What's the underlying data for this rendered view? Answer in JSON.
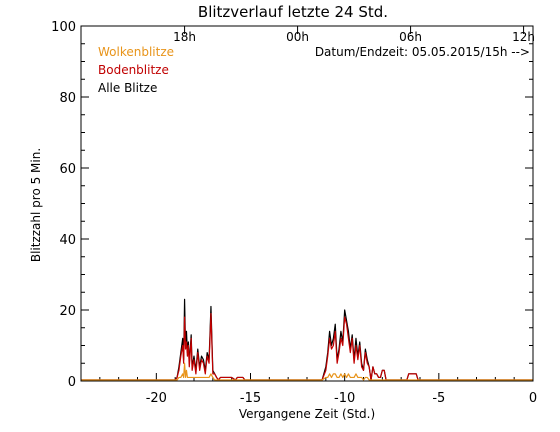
{
  "chart_data": {
    "type": "line",
    "title": "Blitzverlauf letzte 24 Std.",
    "xlabel": "Vergangene Zeit (Std.)",
    "ylabel": "Blitzzahl pro 5 Min.",
    "xlim": [
      -24,
      0
    ],
    "ylim": [
      0,
      100
    ],
    "x_ticks": [
      -20,
      -15,
      -10,
      -5,
      0
    ],
    "y_ticks": [
      0,
      20,
      40,
      60,
      80,
      100
    ],
    "top_ticks": [
      {
        "x": -18.5,
        "label": "18h"
      },
      {
        "x": -12.5,
        "label": "00h"
      },
      {
        "x": -6.5,
        "label": "06h"
      },
      {
        "x": -0.5,
        "label": "12h"
      }
    ],
    "info_text": "Datum/Endzeit: 05.05.2015/15h -->",
    "grid": false,
    "legend_position": "top-left",
    "series": [
      {
        "name": "Alle Blitze",
        "color": "#000000",
        "x": [
          -24,
          -19.0,
          -18.9,
          -18.8,
          -18.7,
          -18.6,
          -18.55,
          -18.5,
          -18.45,
          -18.4,
          -18.35,
          -18.3,
          -18.25,
          -18.2,
          -18.15,
          -18.1,
          -18.0,
          -17.9,
          -17.8,
          -17.7,
          -17.6,
          -17.5,
          -17.4,
          -17.3,
          -17.2,
          -17.1,
          -17.0,
          -16.9,
          -16.8,
          -16.7,
          -16.6,
          -16.5,
          -16.0,
          -15.8,
          -15.7,
          -15.4,
          -15.3,
          -11.2,
          -11.0,
          -10.9,
          -10.8,
          -10.7,
          -10.6,
          -10.5,
          -10.4,
          -10.3,
          -10.2,
          -10.1,
          -10.0,
          -9.9,
          -9.8,
          -9.7,
          -9.6,
          -9.5,
          -9.4,
          -9.3,
          -9.2,
          -9.1,
          -9.0,
          -8.9,
          -8.8,
          -8.7,
          -8.6,
          -8.5,
          -8.4,
          -8.3,
          -8.2,
          -8.1,
          -8.0,
          -7.9,
          -7.8,
          -7.7,
          -7.6,
          -7.5,
          -7.4,
          -7.3,
          -7.2,
          -7.1,
          -7.0,
          -6.9,
          -6.8,
          -6.7,
          -6.6,
          -6.5,
          -6.4,
          -6.3,
          -6.2,
          -6.1,
          -6.0,
          -5.5,
          0
        ],
        "values": [
          0,
          0,
          1,
          4,
          8,
          12,
          6,
          23,
          10,
          14,
          8,
          11,
          5,
          9,
          13,
          4,
          7,
          3,
          9,
          4,
          7,
          6,
          3,
          8,
          6,
          21,
          3,
          2,
          1,
          0,
          1,
          1,
          1,
          0,
          1,
          1,
          0,
          0,
          4,
          8,
          14,
          10,
          12,
          16,
          6,
          9,
          14,
          11,
          20,
          17,
          14,
          9,
          13,
          6,
          12,
          7,
          11,
          5,
          3,
          9,
          6,
          4,
          0,
          4,
          2,
          2,
          1,
          1,
          3,
          3,
          0,
          0,
          0,
          0,
          0,
          0,
          0,
          0,
          0,
          0,
          0,
          0,
          2,
          2,
          2,
          2,
          2,
          0,
          0,
          0,
          0
        ]
      },
      {
        "name": "Bodenblitze",
        "color": "#c00000",
        "x": [
          -24,
          -19.0,
          -18.9,
          -18.8,
          -18.7,
          -18.6,
          -18.55,
          -18.5,
          -18.45,
          -18.4,
          -18.35,
          -18.3,
          -18.25,
          -18.2,
          -18.15,
          -18.1,
          -18.0,
          -17.9,
          -17.8,
          -17.7,
          -17.6,
          -17.5,
          -17.4,
          -17.3,
          -17.2,
          -17.1,
          -17.0,
          -16.9,
          -16.8,
          -16.7,
          -16.6,
          -16.5,
          -16.0,
          -15.8,
          -15.7,
          -15.4,
          -15.3,
          -11.2,
          -11.0,
          -10.9,
          -10.8,
          -10.7,
          -10.6,
          -10.5,
          -10.4,
          -10.3,
          -10.2,
          -10.1,
          -10.0,
          -9.9,
          -9.8,
          -9.7,
          -9.6,
          -9.5,
          -9.4,
          -9.3,
          -9.2,
          -9.1,
          -9.0,
          -8.9,
          -8.8,
          -8.7,
          -8.6,
          -8.5,
          -8.4,
          -8.3,
          -8.2,
          -8.1,
          -8.0,
          -7.9,
          -7.8,
          -7.7,
          -7.6,
          -7.5,
          -7.4,
          -7.3,
          -7.2,
          -7.1,
          -7.0,
          -6.9,
          -6.8,
          -6.7,
          -6.6,
          -6.5,
          -6.4,
          -6.3,
          -6.2,
          -6.1,
          -6.0,
          -5.5,
          0
        ],
        "values": [
          0,
          0,
          1,
          3,
          7,
          10,
          5,
          18,
          9,
          11,
          7,
          10,
          4,
          8,
          12,
          3,
          6,
          2,
          8,
          3,
          6,
          5,
          2,
          7,
          5,
          19,
          2,
          2,
          1,
          0,
          1,
          1,
          1,
          0,
          1,
          1,
          0,
          0,
          3,
          7,
          12,
          9,
          10,
          14,
          5,
          8,
          12,
          10,
          18,
          16,
          12,
          8,
          12,
          5,
          10,
          6,
          10,
          4,
          3,
          8,
          5,
          4,
          0,
          4,
          2,
          2,
          1,
          1,
          3,
          3,
          0,
          0,
          0,
          0,
          0,
          0,
          0,
          0,
          0,
          0,
          0,
          0,
          2,
          2,
          2,
          2,
          2,
          0,
          0,
          0,
          0
        ]
      },
      {
        "name": "Wolkenblitze",
        "color": "#e8941a",
        "x": [
          -24,
          -19.0,
          -18.9,
          -18.8,
          -18.7,
          -18.6,
          -18.55,
          -18.5,
          -18.45,
          -18.4,
          -18.35,
          -18.3,
          -18.25,
          -18.2,
          -18.15,
          -18.1,
          -18.0,
          -17.9,
          -17.8,
          -17.7,
          -17.6,
          -17.5,
          -17.4,
          -17.3,
          -17.2,
          -17.1,
          -17.0,
          -16.9,
          -16.8,
          -16.7,
          -16.6,
          -16.5,
          -16.0,
          -15.8,
          -15.7,
          -15.4,
          -15.3,
          -11.2,
          -11.0,
          -10.9,
          -10.8,
          -10.7,
          -10.6,
          -10.5,
          -10.4,
          -10.3,
          -10.2,
          -10.1,
          -10.0,
          -9.9,
          -9.8,
          -9.7,
          -9.6,
          -9.5,
          -9.4,
          -9.3,
          -9.2,
          -9.1,
          -9.0,
          -8.9,
          -8.8,
          -8.7,
          -8.6,
          -8.5,
          -8.4,
          -8.3,
          -8.2,
          -8.1,
          -8.0,
          -7.9,
          -7.8,
          -7.7,
          -7.6,
          -7.5,
          -7.4,
          -7.3,
          -7.2,
          -7.1,
          -7.0,
          -6.9,
          -6.8,
          -6.7,
          -6.6,
          -6.5,
          -6.4,
          -6.3,
          -6.2,
          -6.1,
          -6.0,
          -5.5,
          0
        ],
        "values": [
          0,
          0,
          0,
          1,
          1,
          2,
          1,
          5,
          1,
          3,
          1,
          1,
          1,
          1,
          1,
          1,
          1,
          1,
          1,
          1,
          1,
          1,
          1,
          1,
          1,
          2,
          1,
          0,
          0,
          0,
          0,
          0,
          0,
          0,
          0,
          0,
          0,
          0,
          1,
          1,
          2,
          1,
          2,
          2,
          1,
          1,
          2,
          1,
          2,
          1,
          2,
          1,
          1,
          1,
          2,
          1,
          1,
          1,
          0,
          1,
          1,
          0,
          0,
          0,
          0,
          0,
          0,
          0,
          0,
          0,
          0,
          0,
          0,
          0,
          0,
          0,
          0,
          0,
          0,
          0,
          0,
          0,
          0,
          0,
          0,
          0,
          0,
          0,
          0,
          0,
          0
        ]
      }
    ]
  }
}
